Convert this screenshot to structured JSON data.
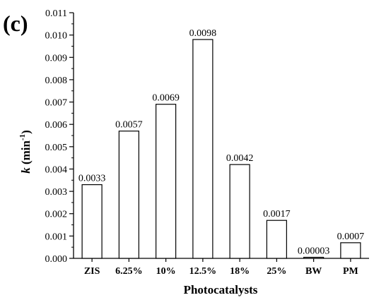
{
  "panel_label": "(c)",
  "chart_data": {
    "type": "bar",
    "categories": [
      "ZIS",
      "6.25%",
      "10%",
      "12.5%",
      "18%",
      "25%",
      "BW",
      "PM"
    ],
    "values": [
      0.0033,
      0.0057,
      0.0069,
      0.0098,
      0.0042,
      0.0017,
      3e-05,
      0.0007
    ],
    "data_labels": [
      "0.0033",
      "0.0057",
      "0.0069",
      "0.0098",
      "0.0042",
      "0.0017",
      "0.00003",
      "0.0007"
    ],
    "xlabel": "Photocatalysts",
    "ylabel": {
      "symbol": "k",
      "unit_base": " (min",
      "unit_exp": "-1",
      "unit_close": ")"
    },
    "ylim": [
      0,
      0.011
    ],
    "yticks": [
      "0.000",
      "0.001",
      "0.002",
      "0.003",
      "0.004",
      "0.005",
      "0.006",
      "0.007",
      "0.008",
      "0.009",
      "0.010",
      "0.011"
    ],
    "grid": false,
    "legend": "none",
    "colors": {
      "bar_fill": "#ffffff",
      "bar_stroke": "#000000",
      "axis": "#000000"
    }
  }
}
